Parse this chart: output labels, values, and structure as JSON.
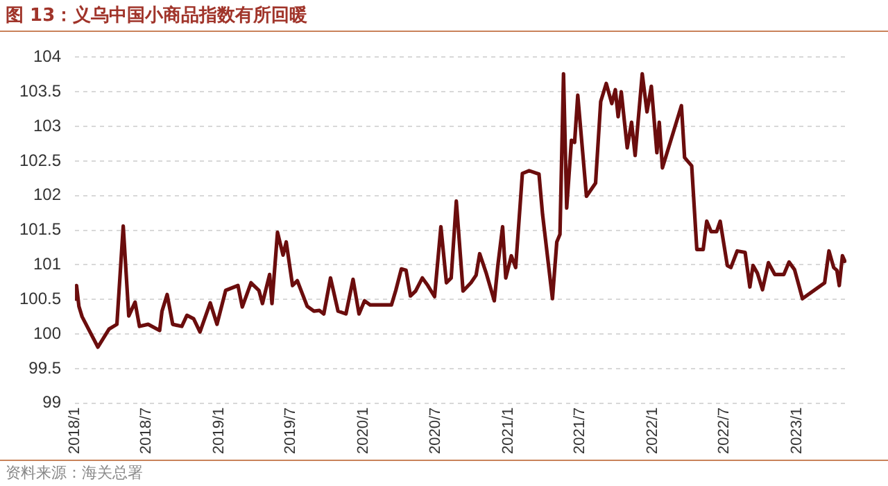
{
  "chart_data": {
    "type": "line",
    "title": "图 13：义乌中国小商品指数有所回暖",
    "annotations": [
      "资料来源：海关总署"
    ],
    "x": [
      "2018-01-01",
      "2018-01-05",
      "2018-01-11",
      "2018-01-19",
      "2018-02-28",
      "2018-03-28",
      "2018-04-17",
      "2018-05-03",
      "2018-05-17",
      "2018-06-02",
      "2018-06-13",
      "2018-07-05",
      "2018-08-03",
      "2018-08-09",
      "2018-08-22",
      "2018-09-05",
      "2018-09-28",
      "2018-10-11",
      "2018-10-28",
      "2018-11-13",
      "2018-12-09",
      "2018-12-26",
      "2019-01-17",
      "2019-02-17",
      "2019-02-28",
      "2019-03-22",
      "2019-04-11",
      "2019-04-20",
      "2019-04-28",
      "2019-05-08",
      "2019-05-14",
      "2019-05-28",
      "2019-06-11",
      "2019-06-19",
      "2019-07-05",
      "2019-07-17",
      "2019-08-11",
      "2019-08-28",
      "2019-09-11",
      "2019-09-22",
      "2019-10-09",
      "2019-10-28",
      "2019-11-17",
      "2019-12-05",
      "2019-12-20",
      "2020-01-03",
      "2020-01-17",
      "2020-03-11",
      "2020-03-22",
      "2020-04-05",
      "2020-04-17",
      "2020-04-28",
      "2020-05-11",
      "2020-05-28",
      "2020-06-11",
      "2020-06-28",
      "2020-07-14",
      "2020-07-28",
      "2020-08-09",
      "2020-08-22",
      "2020-09-08",
      "2020-09-28",
      "2020-10-11",
      "2020-10-20",
      "2020-11-05",
      "2020-11-26",
      "2020-12-05",
      "2020-12-17",
      "2020-12-25",
      "2021-01-08",
      "2021-01-19",
      "2021-02-05",
      "2021-02-22",
      "2021-03-19",
      "2021-03-28",
      "2021-04-22",
      "2021-05-03",
      "2021-05-11",
      "2021-05-20",
      "2021-05-28",
      "2021-06-09",
      "2021-06-17",
      "2021-06-25",
      "2021-07-17",
      "2021-08-09",
      "2021-08-22",
      "2021-09-05",
      "2021-09-19",
      "2021-09-28",
      "2021-10-05",
      "2021-10-13",
      "2021-10-28",
      "2021-11-08",
      "2021-11-17",
      "2021-12-05",
      "2021-12-17",
      "2021-12-28",
      "2022-01-11",
      "2022-01-17",
      "2022-01-25",
      "2022-03-14",
      "2022-03-22",
      "2022-04-09",
      "2022-04-22",
      "2022-05-08",
      "2022-05-17",
      "2022-05-28",
      "2022-06-11",
      "2022-06-20",
      "2022-07-08",
      "2022-07-17",
      "2022-08-02",
      "2022-08-22",
      "2022-09-03",
      "2022-09-11",
      "2022-09-22",
      "2022-10-05",
      "2022-10-20",
      "2022-11-05",
      "2022-11-28",
      "2022-12-11",
      "2022-12-25",
      "2023-01-05",
      "2023-01-14",
      "2023-03-11",
      "2023-03-22",
      "2023-04-03",
      "2023-04-11",
      "2023-04-17",
      "2023-04-25",
      "2023-05-03"
    ],
    "series": [
      {
        "color": "#6b0d0d",
        "values": [
          100.48,
          100.7,
          100.4,
          100.25,
          99.81,
          100.07,
          100.14,
          101.56,
          100.26,
          100.46,
          100.11,
          100.14,
          100.05,
          100.33,
          100.57,
          100.14,
          100.11,
          100.27,
          100.22,
          100.03,
          100.45,
          100.14,
          100.63,
          100.7,
          100.39,
          100.74,
          100.63,
          100.44,
          100.63,
          100.86,
          100.44,
          101.47,
          101.14,
          101.33,
          100.7,
          100.77,
          100.4,
          100.33,
          100.34,
          100.29,
          100.81,
          100.33,
          100.29,
          100.79,
          100.29,
          100.48,
          100.42,
          100.42,
          100.63,
          100.94,
          100.92,
          100.55,
          100.62,
          100.81,
          100.7,
          100.54,
          101.55,
          100.74,
          100.81,
          101.92,
          100.62,
          100.74,
          100.85,
          101.16,
          100.89,
          100.48,
          100.99,
          101.55,
          100.81,
          101.13,
          100.96,
          102.32,
          102.36,
          102.31,
          101.73,
          100.51,
          101.33,
          101.44,
          103.76,
          101.82,
          102.8,
          102.77,
          103.45,
          101.99,
          102.18,
          103.36,
          103.62,
          103.33,
          103.53,
          103.14,
          103.5,
          102.69,
          103.06,
          102.58,
          103.76,
          103.21,
          103.58,
          102.62,
          103.06,
          102.4,
          103.3,
          102.55,
          102.43,
          101.22,
          101.22,
          101.63,
          101.48,
          101.48,
          101.63,
          100.99,
          100.96,
          101.2,
          101.18,
          100.68,
          100.99,
          100.88,
          100.64,
          101.03,
          100.86,
          100.86,
          101.04,
          100.93,
          100.7,
          100.51,
          100.74,
          101.2,
          100.96,
          100.92,
          100.7,
          101.13,
          101.03
        ]
      }
    ],
    "xlim": [
      "2018-01-01",
      "2023-05-05"
    ],
    "xticks": [
      {
        "value": "2018-01",
        "label": "2018/1"
      },
      {
        "value": "2018-07",
        "label": "2018/7"
      },
      {
        "value": "2019-01",
        "label": "2019/1"
      },
      {
        "value": "2019-07",
        "label": "2019/7"
      },
      {
        "value": "2020-01",
        "label": "2020/1"
      },
      {
        "value": "2020-07",
        "label": "2020/7"
      },
      {
        "value": "2021-01",
        "label": "2021/1"
      },
      {
        "value": "2021-07",
        "label": "2021/7"
      },
      {
        "value": "2022-01",
        "label": "2022/1"
      },
      {
        "value": "2022-07",
        "label": "2022/7"
      },
      {
        "value": "2023-01",
        "label": "2023/1"
      }
    ],
    "ylim": [
      99,
      104
    ],
    "yticks": [
      99,
      99.5,
      100,
      100.5,
      101,
      101.5,
      102,
      102.5,
      103,
      103.5,
      104
    ],
    "grid": "y",
    "legend": false,
    "marker": "none",
    "line_style": "solid"
  }
}
